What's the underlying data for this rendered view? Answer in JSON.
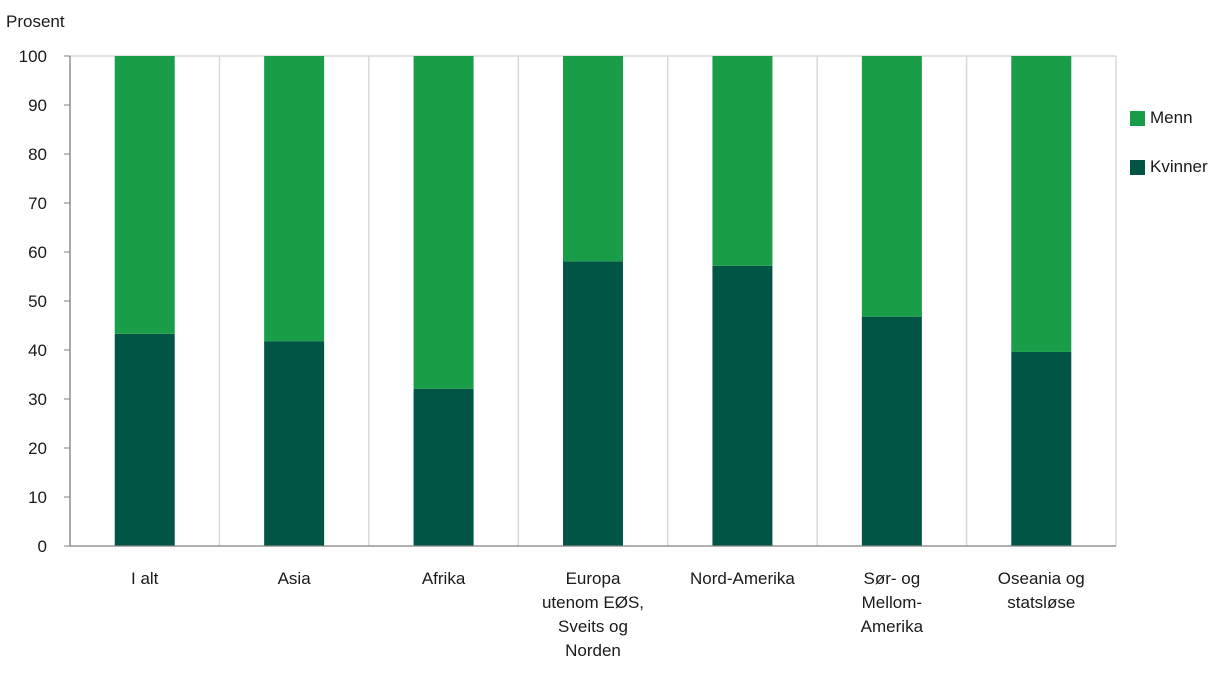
{
  "chart_data": {
    "type": "bar",
    "stacked": true,
    "ylabel": "Prosent",
    "ylim": [
      0,
      100
    ],
    "yticks": [
      0,
      10,
      20,
      30,
      40,
      50,
      60,
      70,
      80,
      90,
      100
    ],
    "grid": "vertical",
    "categories": [
      [
        "I alt"
      ],
      [
        "Asia"
      ],
      [
        "Afrika"
      ],
      [
        "Europa",
        "utenom EØS,",
        "Sveits og",
        "Norden"
      ],
      [
        "Nord-Amerika"
      ],
      [
        "Sør- og",
        "Mellom-",
        "Amerika"
      ],
      [
        "Oseania og",
        "statsløse"
      ]
    ],
    "series": [
      {
        "name": "Kvinner",
        "color": "#005545",
        "values": [
          43.3,
          41.8,
          32.1,
          58.1,
          57.2,
          46.8,
          39.6
        ]
      },
      {
        "name": "Menn",
        "color": "#1a9d49",
        "values": [
          56.7,
          58.2,
          67.9,
          41.9,
          42.8,
          53.2,
          60.4
        ]
      }
    ],
    "legend": {
      "placement": "right",
      "order": [
        "Menn",
        "Kvinner"
      ]
    }
  }
}
